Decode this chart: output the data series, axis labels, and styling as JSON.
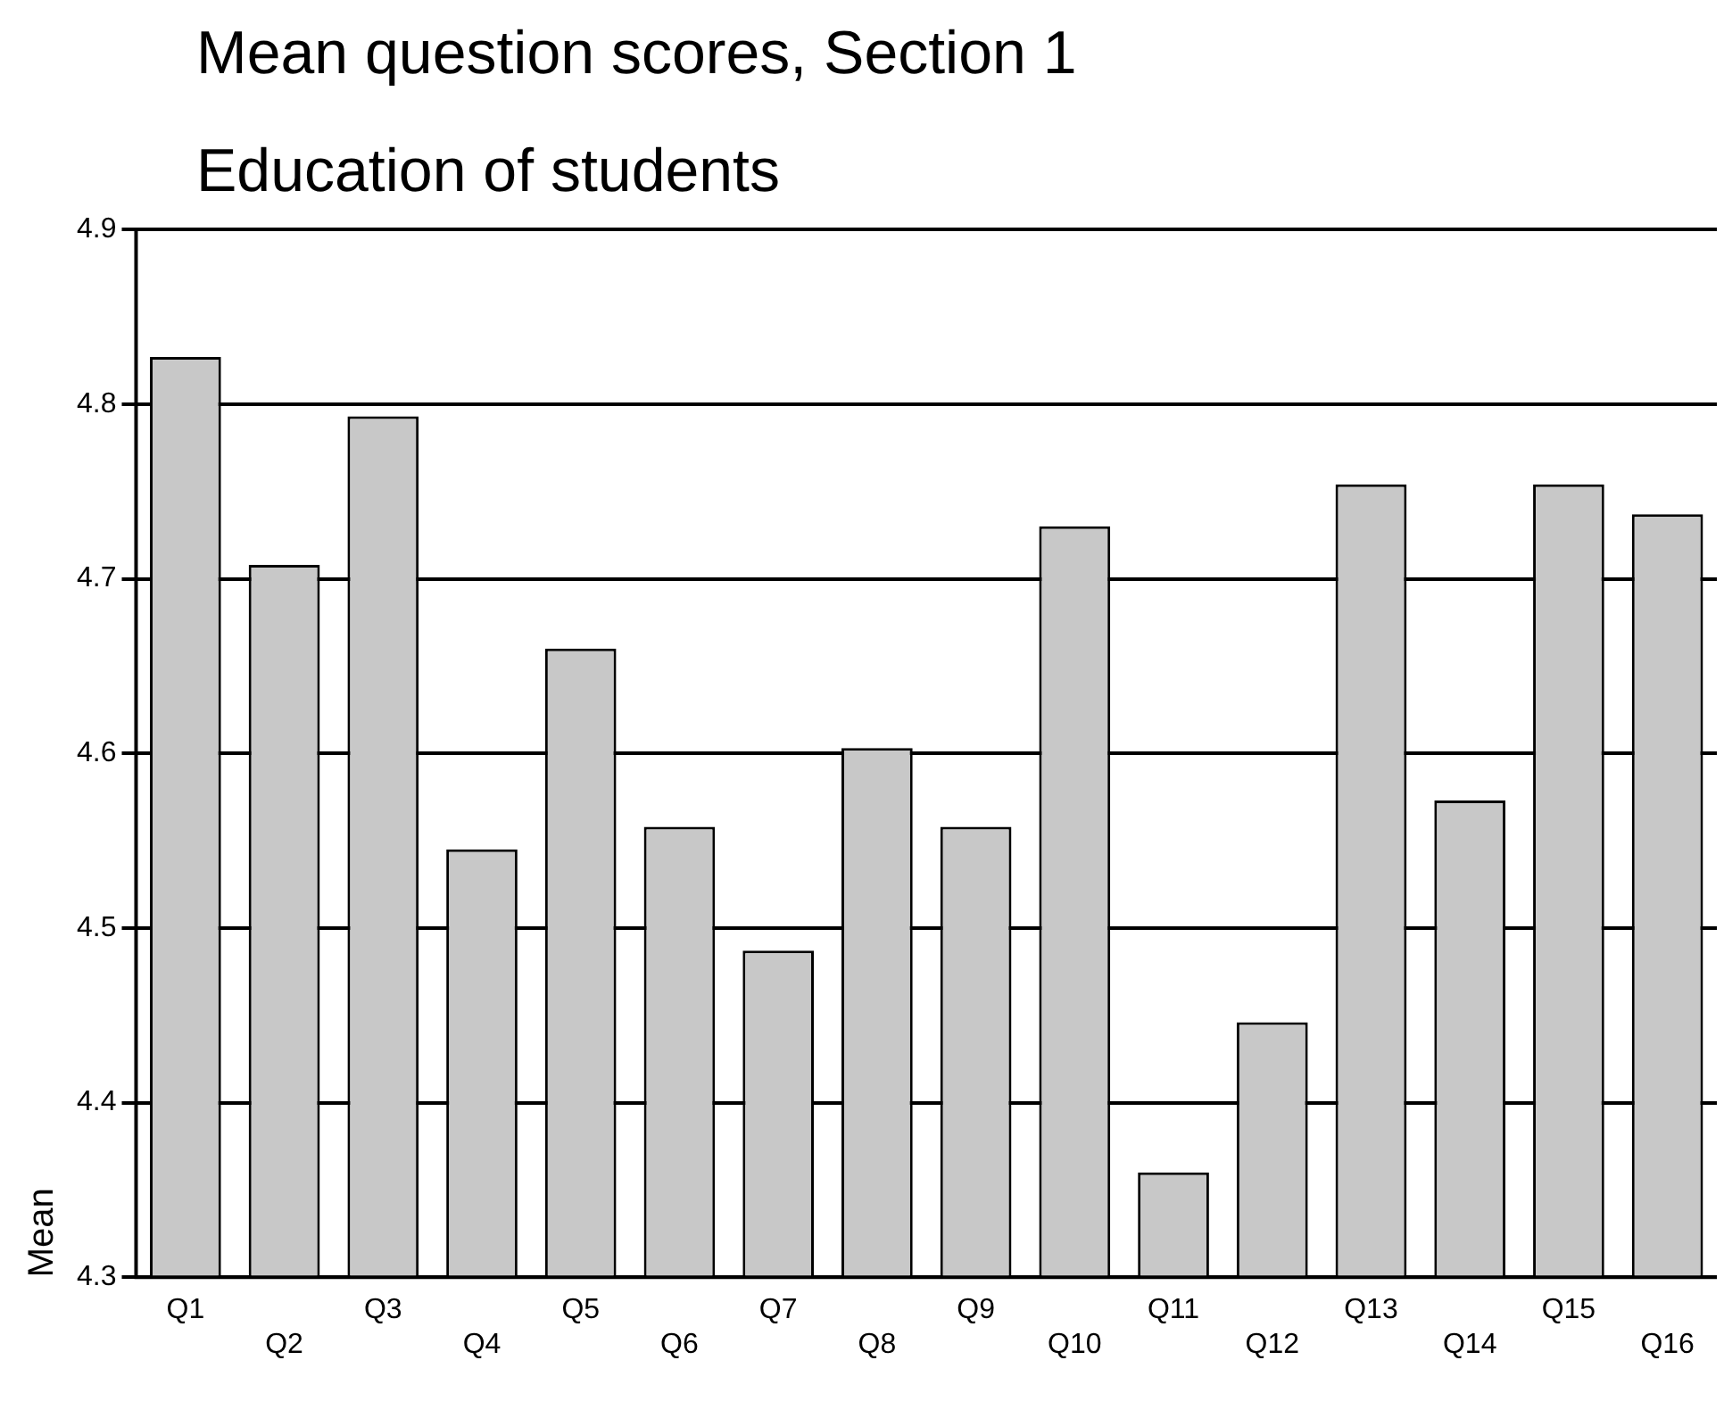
{
  "chart_data": {
    "type": "bar",
    "title": "Mean question scores, Section 1",
    "subtitle": "Education of students",
    "ylabel": "Mean",
    "categories": [
      "Q1",
      "Q2",
      "Q3",
      "Q4",
      "Q5",
      "Q6",
      "Q7",
      "Q8",
      "Q9",
      "Q10",
      "Q11",
      "Q12",
      "Q13",
      "Q14",
      "Q15",
      "Q16"
    ],
    "values": [
      4.827,
      4.708,
      4.793,
      4.545,
      4.66,
      4.558,
      4.487,
      4.603,
      4.558,
      4.73,
      4.36,
      4.446,
      4.754,
      4.573,
      4.754,
      4.737
    ],
    "color": "#c8c8c8",
    "ylim": [
      4.3,
      4.9
    ],
    "yticks": [
      4.3,
      4.4,
      4.5,
      4.6,
      4.7,
      4.8,
      4.9
    ],
    "grid": "y",
    "legend": false
  }
}
